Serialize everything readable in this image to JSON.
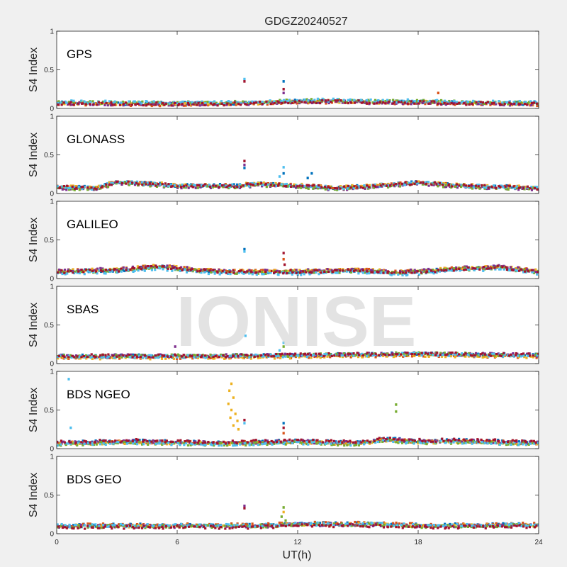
{
  "chart_data": {
    "type": "scatter",
    "title": "GDGZ20240527",
    "watermark": "IONISE",
    "xlabel": "UT(h)",
    "ylabel": "S4 Index",
    "xlim": [
      0,
      24
    ],
    "ylim": [
      0,
      1
    ],
    "x_ticks": [
      0,
      6,
      12,
      18,
      24
    ],
    "y_ticks": [
      0,
      0.5,
      1
    ],
    "y_tick_labels": [
      "0",
      "0.5",
      "1"
    ],
    "grid": false,
    "series_colors": [
      "#0072BD",
      "#D95319",
      "#EDB120",
      "#7E2F8E",
      "#77AC30",
      "#4DBEEE",
      "#A2142F"
    ],
    "panels": [
      {
        "label": "GPS",
        "baseline": 0.07,
        "trend": [
          [
            0,
            0.07
          ],
          [
            4,
            0.06
          ],
          [
            8,
            0.06
          ],
          [
            10,
            0.07
          ],
          [
            12,
            0.09
          ],
          [
            14,
            0.09
          ],
          [
            16,
            0.08
          ],
          [
            18,
            0.08
          ],
          [
            20,
            0.07
          ],
          [
            24,
            0.06
          ]
        ],
        "spikes": [
          {
            "x": 9.35,
            "y": 0.38,
            "color": "#4DBEEE"
          },
          {
            "x": 9.35,
            "y": 0.35,
            "color": "#A2142F"
          },
          {
            "x": 11.3,
            "y": 0.35,
            "color": "#0072BD"
          },
          {
            "x": 11.3,
            "y": 0.25,
            "color": "#A2142F"
          },
          {
            "x": 11.3,
            "y": 0.2,
            "color": "#7E2F8E"
          },
          {
            "x": 19.0,
            "y": 0.2,
            "color": "#D95319"
          }
        ]
      },
      {
        "label": "GLONASS",
        "baseline": 0.08,
        "trend": [
          [
            0,
            0.08
          ],
          [
            2,
            0.07
          ],
          [
            3,
            0.15
          ],
          [
            6,
            0.1
          ],
          [
            9,
            0.1
          ],
          [
            10,
            0.12
          ],
          [
            12,
            0.1
          ],
          [
            14,
            0.07
          ],
          [
            16,
            0.1
          ],
          [
            18,
            0.14
          ],
          [
            20,
            0.1
          ],
          [
            24,
            0.07
          ]
        ],
        "spikes": [
          {
            "x": 9.35,
            "y": 0.42,
            "color": "#A2142F"
          },
          {
            "x": 9.35,
            "y": 0.37,
            "color": "#7E2F8E"
          },
          {
            "x": 9.35,
            "y": 0.33,
            "color": "#0072BD"
          },
          {
            "x": 11.3,
            "y": 0.34,
            "color": "#4DBEEE"
          },
          {
            "x": 11.3,
            "y": 0.26,
            "color": "#0072BD"
          },
          {
            "x": 11.1,
            "y": 0.22,
            "color": "#4DBEEE"
          },
          {
            "x": 12.7,
            "y": 0.26,
            "color": "#0072BD"
          },
          {
            "x": 12.5,
            "y": 0.2,
            "color": "#0072BD"
          }
        ]
      },
      {
        "label": "GALILEO",
        "baseline": 0.08,
        "trend": [
          [
            0,
            0.08
          ],
          [
            2,
            0.1
          ],
          [
            3,
            0.1
          ],
          [
            5,
            0.15
          ],
          [
            7,
            0.1
          ],
          [
            9,
            0.08
          ],
          [
            12,
            0.08
          ],
          [
            15,
            0.1
          ],
          [
            17,
            0.07
          ],
          [
            19,
            0.1
          ],
          [
            20,
            0.12
          ],
          [
            22,
            0.14
          ],
          [
            24,
            0.08
          ]
        ],
        "spikes": [
          {
            "x": 9.35,
            "y": 0.38,
            "color": "#0072BD"
          },
          {
            "x": 9.35,
            "y": 0.35,
            "color": "#4DBEEE"
          },
          {
            "x": 11.3,
            "y": 0.33,
            "color": "#A2142F"
          },
          {
            "x": 11.3,
            "y": 0.25,
            "color": "#D95319"
          },
          {
            "x": 11.35,
            "y": 0.18,
            "color": "#A2142F"
          },
          {
            "x": 10.6,
            "y": 0.1,
            "color": "#EDB120"
          }
        ]
      },
      {
        "label": "SBAS",
        "baseline": 0.09,
        "trend": [
          [
            0,
            0.09
          ],
          [
            6,
            0.09
          ],
          [
            12,
            0.1
          ],
          [
            18,
            0.12
          ],
          [
            24,
            0.1
          ]
        ],
        "spikes": [
          {
            "x": 5.9,
            "y": 0.22,
            "color": "#7E2F8E"
          },
          {
            "x": 9.4,
            "y": 0.36,
            "color": "#4DBEEE"
          },
          {
            "x": 11.3,
            "y": 0.27,
            "color": "#4DBEEE"
          },
          {
            "x": 11.3,
            "y": 0.22,
            "color": "#77AC30"
          },
          {
            "x": 11.1,
            "y": 0.17,
            "color": "#4DBEEE"
          }
        ]
      },
      {
        "label": "BDS NGEO",
        "baseline": 0.07,
        "trend": [
          [
            0,
            0.07
          ],
          [
            4,
            0.09
          ],
          [
            8,
            0.07
          ],
          [
            10,
            0.08
          ],
          [
            12,
            0.09
          ],
          [
            15,
            0.07
          ],
          [
            16.5,
            0.12
          ],
          [
            18,
            0.09
          ],
          [
            20,
            0.1
          ],
          [
            24,
            0.07
          ]
        ],
        "spikes": [
          {
            "x": 0.6,
            "y": 0.9,
            "color": "#4DBEEE"
          },
          {
            "x": 0.7,
            "y": 0.27,
            "color": "#4DBEEE"
          },
          {
            "x": 8.7,
            "y": 0.84,
            "color": "#EDB120"
          },
          {
            "x": 8.6,
            "y": 0.75,
            "color": "#EDB120"
          },
          {
            "x": 8.8,
            "y": 0.66,
            "color": "#EDB120"
          },
          {
            "x": 8.55,
            "y": 0.58,
            "color": "#EDB120"
          },
          {
            "x": 8.7,
            "y": 0.5,
            "color": "#EDB120"
          },
          {
            "x": 8.9,
            "y": 0.45,
            "color": "#EDB120"
          },
          {
            "x": 8.65,
            "y": 0.4,
            "color": "#EDB120"
          },
          {
            "x": 9.0,
            "y": 0.36,
            "color": "#EDB120"
          },
          {
            "x": 8.8,
            "y": 0.3,
            "color": "#EDB120"
          },
          {
            "x": 9.05,
            "y": 0.25,
            "color": "#EDB120"
          },
          {
            "x": 9.35,
            "y": 0.37,
            "color": "#A2142F"
          },
          {
            "x": 9.35,
            "y": 0.33,
            "color": "#4DBEEE"
          },
          {
            "x": 11.3,
            "y": 0.33,
            "color": "#0072BD"
          },
          {
            "x": 11.3,
            "y": 0.27,
            "color": "#A2142F"
          },
          {
            "x": 11.3,
            "y": 0.2,
            "color": "#D95319"
          },
          {
            "x": 16.9,
            "y": 0.57,
            "color": "#77AC30"
          },
          {
            "x": 16.9,
            "y": 0.48,
            "color": "#77AC30"
          }
        ]
      },
      {
        "label": "BDS GEO",
        "baseline": 0.1,
        "trend": [
          [
            0,
            0.1
          ],
          [
            6,
            0.1
          ],
          [
            10,
            0.1
          ],
          [
            12,
            0.12
          ],
          [
            16,
            0.12
          ],
          [
            18,
            0.1
          ],
          [
            24,
            0.11
          ]
        ],
        "spikes": [
          {
            "x": 9.35,
            "y": 0.36,
            "color": "#7E2F8E"
          },
          {
            "x": 9.35,
            "y": 0.33,
            "color": "#A2142F"
          },
          {
            "x": 11.3,
            "y": 0.34,
            "color": "#77AC30"
          },
          {
            "x": 11.3,
            "y": 0.28,
            "color": "#EDB120"
          },
          {
            "x": 11.2,
            "y": 0.22,
            "color": "#77AC30"
          },
          {
            "x": 11.4,
            "y": 0.17,
            "color": "#77AC30"
          }
        ]
      }
    ]
  }
}
